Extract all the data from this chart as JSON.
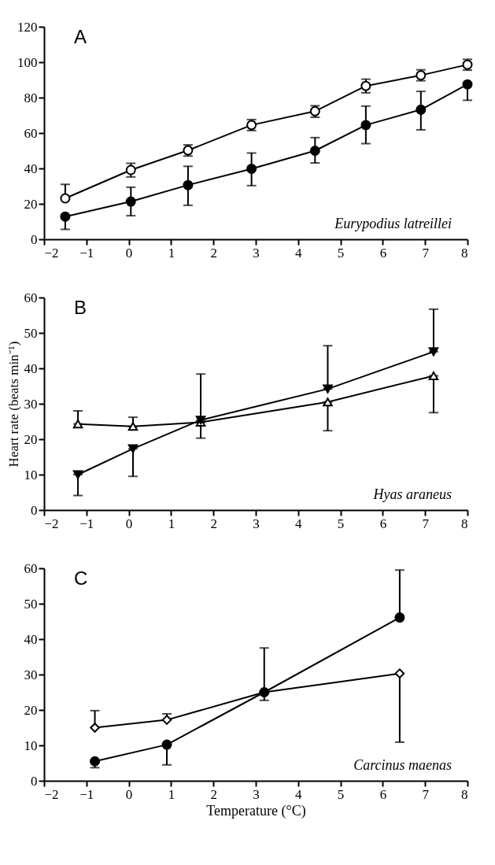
{
  "chart_data": [
    {
      "type": "line",
      "title": "A",
      "annotations": [
        "Eurypodius latreillei"
      ],
      "xlim": [
        -2,
        8
      ],
      "xticks": [
        -2,
        -1,
        0,
        1,
        2,
        3,
        4,
        5,
        6,
        7,
        8
      ],
      "ylim": [
        0,
        120
      ],
      "yticks": [
        0,
        20,
        40,
        60,
        80,
        100,
        120
      ],
      "grid": false,
      "line_style": "solid",
      "series": [
        {
          "color": "#ffffff",
          "marker": "circle",
          "x": [
            -1.5,
            0.05,
            1.4,
            2.9,
            4.4,
            5.6,
            6.9,
            8
          ],
          "values": [
            23.1,
            39.1,
            50.2,
            64.5,
            72.3,
            86.6,
            92.6,
            98.6
          ],
          "errors": [
            [
              23.1,
              31
            ],
            [
              35.2,
              42.9
            ],
            [
              47,
              53.3
            ],
            [
              61.4,
              67.6
            ],
            [
              68.9,
              75.4
            ],
            [
              82.7,
              90.4
            ],
            [
              89.5,
              95.7
            ],
            [
              95.5,
              101.6
            ]
          ]
        },
        {
          "color": "#000000",
          "marker": "circle",
          "x": [
            -1.5,
            0.05,
            1.4,
            2.9,
            4.4,
            5.6,
            6.9,
            8
          ],
          "values": [
            12.8,
            21.3,
            30.6,
            39.8,
            50,
            64.5,
            73.2,
            87.5
          ],
          "errors": [
            [
              5.6,
              12.8
            ],
            [
              13.3,
              29.4
            ],
            [
              19.2,
              41.2
            ],
            [
              30.3,
              48.7
            ],
            [
              43.1,
              57.4
            ],
            [
              54,
              75.2
            ],
            [
              61.8,
              83.5
            ],
            [
              78.5,
              87.5
            ]
          ]
        }
      ]
    },
    {
      "type": "line",
      "title": "B",
      "ylabel": "Heart rate (beats min⁻¹)",
      "annotations": [
        "Hyas araneus"
      ],
      "xlim": [
        -2,
        8
      ],
      "xticks": [
        -2,
        -1,
        0,
        1,
        2,
        3,
        4,
        5,
        6,
        7,
        8
      ],
      "ylim": [
        0,
        60
      ],
      "yticks": [
        0,
        10,
        20,
        30,
        40,
        50,
        60
      ],
      "grid": false,
      "line_style": "solid",
      "series": [
        {
          "color": "#ffffff",
          "marker": "triangle",
          "x": [
            -1.2,
            0.1,
            1.7,
            4.7,
            7.2
          ],
          "values": [
            24.3,
            23.6,
            24.8,
            30.5,
            37.9
          ],
          "errors": [
            [
              24.3,
              28
            ],
            [
              23.6,
              26.2
            ],
            [
              20.3,
              24.8
            ],
            [
              22.4,
              30.5
            ],
            [
              27.5,
              37.9
            ]
          ]
        },
        {
          "color": "#000000",
          "marker": "triangle-down",
          "x": [
            -1.2,
            0.1,
            1.7,
            4.7,
            7.2
          ],
          "values": [
            10,
            17.3,
            25.4,
            34.2,
            44.7
          ],
          "errors": [
            [
              4.1,
              10
            ],
            [
              9.5,
              17.3
            ],
            [
              25.4,
              38.4
            ],
            [
              34.2,
              46.4
            ],
            [
              44.7,
              56.7
            ]
          ]
        }
      ]
    },
    {
      "type": "line",
      "title": "C",
      "xlabel": "Temperature (°C)",
      "annotations": [
        "Carcinus maenas"
      ],
      "xlim": [
        -2,
        8
      ],
      "xticks": [
        -2,
        -1,
        0,
        1,
        2,
        3,
        4,
        5,
        6,
        7,
        8
      ],
      "ylim": [
        0,
        60
      ],
      "yticks": [
        0,
        10,
        20,
        30,
        40,
        50,
        60
      ],
      "grid": false,
      "line_style": "solid",
      "series": [
        {
          "color": "#ffffff",
          "marker": "diamond",
          "x": [
            -0.8,
            0.9,
            3.2,
            6.4
          ],
          "values": [
            15,
            17.2,
            25,
            30.3
          ],
          "errors": [
            [
              15,
              19.8
            ],
            [
              17.2,
              18.9
            ],
            [
              22.7,
              25
            ],
            [
              10.9,
              30.3
            ]
          ]
        },
        {
          "color": "#000000",
          "marker": "circle",
          "x": [
            -0.8,
            0.9,
            3.2,
            6.4
          ],
          "values": [
            5.5,
            10.2,
            25,
            46.1
          ],
          "errors": [
            [
              3.7,
              5.5
            ],
            [
              4.5,
              10.2
            ],
            [
              25,
              37.5
            ],
            [
              46.1,
              59.5
            ]
          ]
        }
      ]
    }
  ]
}
